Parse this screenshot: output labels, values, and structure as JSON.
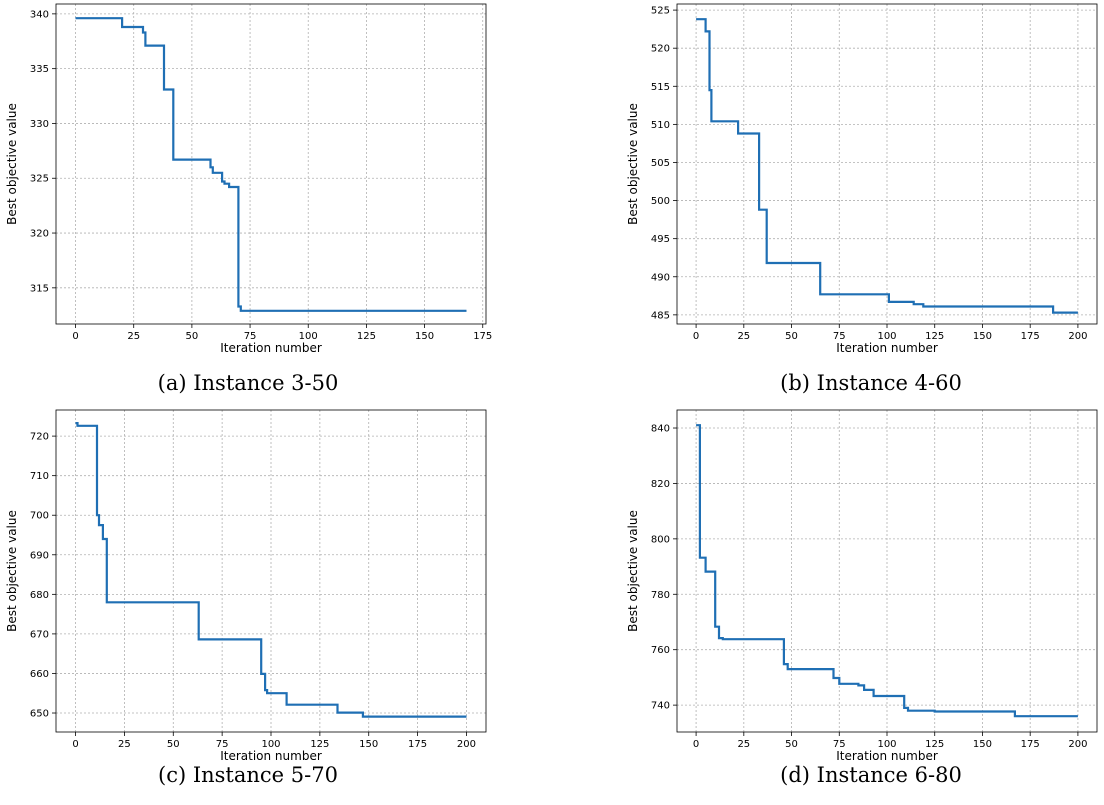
{
  "colors": {
    "series": "#1f6fb4",
    "grid": "#b0b0b0",
    "axes": "#000000",
    "background": "#ffffff"
  },
  "chart_data": [
    {
      "type": "line",
      "caption": "(a) Instance 3-50",
      "xlabel": "Iteration number",
      "ylabel": "Best objective value",
      "xlim": [
        -8.4,
        176.4
      ],
      "ylim": [
        311.7,
        340.9
      ],
      "xticks": [
        0,
        25,
        50,
        75,
        100,
        125,
        150,
        175
      ],
      "yticks": [
        315,
        320,
        325,
        330,
        335,
        340
      ],
      "grid": true,
      "step": true,
      "x": [
        0,
        20,
        29,
        30,
        38,
        39,
        42,
        43,
        58,
        59,
        63,
        64,
        66,
        70,
        71,
        72,
        168
      ],
      "y": [
        339.6,
        338.8,
        338.3,
        337.1,
        333.1,
        333.1,
        326.7,
        326.7,
        326.0,
        325.5,
        324.7,
        324.5,
        324.2,
        313.3,
        312.9,
        312.9,
        312.9
      ]
    },
    {
      "type": "line",
      "caption": "(b) Instance 4-60",
      "xlabel": "Iteration number",
      "ylabel": "Best objective value",
      "xlim": [
        -10,
        210
      ],
      "ylim": [
        483.8,
        525.8
      ],
      "xticks": [
        0,
        25,
        50,
        75,
        100,
        125,
        150,
        175,
        200
      ],
      "yticks": [
        485,
        490,
        495,
        500,
        505,
        510,
        515,
        520,
        525
      ],
      "grid": true,
      "step": true,
      "x": [
        0,
        5,
        7,
        8,
        22,
        33,
        34,
        37,
        65,
        101,
        114,
        119,
        187,
        200
      ],
      "y": [
        523.8,
        522.2,
        514.5,
        510.4,
        508.8,
        498.8,
        498.8,
        491.8,
        487.7,
        486.7,
        486.4,
        486.1,
        485.3,
        485.3
      ]
    },
    {
      "type": "line",
      "caption": "(c) Instance 5-70",
      "xlabel": "Iteration number",
      "ylabel": "Best objective value",
      "xlim": [
        -10,
        210
      ],
      "ylim": [
        645.2,
        726.6
      ],
      "xticks": [
        0,
        25,
        50,
        75,
        100,
        125,
        150,
        175,
        200
      ],
      "yticks": [
        650,
        660,
        670,
        680,
        690,
        700,
        710,
        720
      ],
      "grid": true,
      "step": true,
      "x": [
        0,
        1,
        11,
        12,
        14,
        16,
        63,
        95,
        97,
        98,
        108,
        134,
        147,
        200
      ],
      "y": [
        723.3,
        722.6,
        700.0,
        697.5,
        694.0,
        678.0,
        668.6,
        659.9,
        655.8,
        655.0,
        652.1,
        650.1,
        649.1,
        649.1
      ]
    },
    {
      "type": "line",
      "caption": "(d) Instance 6-80",
      "xlabel": "Iteration number",
      "ylabel": "Best objective value",
      "xlim": [
        -10,
        210
      ],
      "ylim": [
        730.3,
        846.5
      ],
      "xticks": [
        0,
        25,
        50,
        75,
        100,
        125,
        150,
        175,
        200
      ],
      "yticks": [
        740,
        760,
        780,
        800,
        820,
        840
      ],
      "grid": true,
      "step": true,
      "x": [
        0,
        2,
        5,
        10,
        12,
        14,
        46,
        48,
        72,
        75,
        85,
        88,
        93,
        109,
        111,
        125,
        167,
        200
      ],
      "y": [
        841.0,
        793.2,
        788.2,
        768.3,
        764.2,
        763.8,
        754.8,
        753.0,
        749.8,
        747.7,
        747.1,
        745.5,
        743.3,
        739.0,
        738.0,
        737.7,
        736.0,
        736.0
      ]
    }
  ]
}
